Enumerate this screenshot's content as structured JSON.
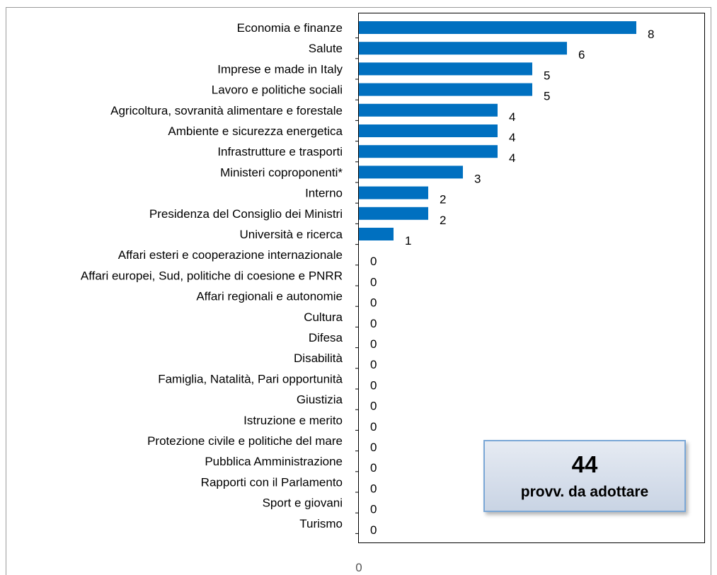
{
  "chart_data": {
    "type": "bar",
    "orientation": "horizontal",
    "categories": [
      "Economia e finanze",
      "Salute",
      "Imprese e made in Italy",
      "Lavoro e politiche sociali",
      "Agricoltura, sovranità alimentare e forestale",
      "Ambiente e sicurezza energetica",
      "Infrastrutture e trasporti",
      "Ministeri coproponenti*",
      "Interno",
      "Presidenza del Consiglio dei Ministri",
      "Università e ricerca",
      "Affari esteri e cooperazione internazionale",
      "Affari europei, Sud, politiche di coesione e PNRR",
      "Affari regionali e autonomie",
      "Cultura",
      "Difesa",
      "Disabilità",
      "Famiglia, Natalità, Pari opportunità",
      "Giustizia",
      "Istruzione e merito",
      "Protezione civile e politiche del mare",
      "Pubblica Amministrazione",
      "Rapporti con il Parlamento",
      "Sport e giovani",
      "Turismo"
    ],
    "values": [
      8,
      6,
      5,
      5,
      4,
      4,
      4,
      3,
      2,
      2,
      1,
      0,
      0,
      0,
      0,
      0,
      0,
      0,
      0,
      0,
      0,
      0,
      0,
      0,
      0
    ],
    "data_labels": [
      "8",
      "6",
      "5",
      "5",
      "4",
      "4",
      "4",
      "3",
      "2",
      "2",
      "1",
      "0",
      "0",
      "0",
      "0",
      "0",
      "0",
      "0",
      "0",
      "0",
      "0",
      "0",
      "0",
      "0",
      "0"
    ],
    "x_tick_labels": [
      "0"
    ],
    "xlim": [
      0,
      10
    ],
    "bar_color": "#0070c0",
    "grid": false
  },
  "summary_box": {
    "value": "44",
    "caption": "provv. da adottare"
  }
}
